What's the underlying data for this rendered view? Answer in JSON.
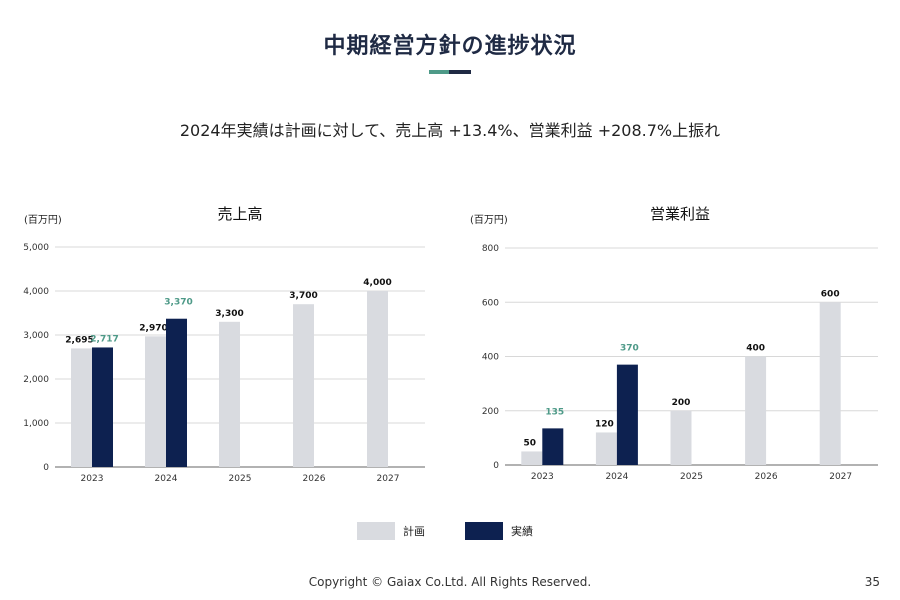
{
  "page": {
    "title": "中期経営方針の進捗状況",
    "subtitle": "2024年実績は計画に対して、売上高 +13.4%、営業利益 +208.7%上振れ",
    "footer": "Copyright © Gaiax Co.Ltd. All Rights Reserved.",
    "page_number": "35",
    "legend": {
      "plan": "計画",
      "actual": "実績"
    }
  },
  "colors": {
    "plan": "#d9dbe0",
    "actual": "#0d2150",
    "actual_label": "#4e9a88",
    "accent_green": "#4e9a88",
    "accent_navy": "#1f2a44"
  },
  "chart_data": [
    {
      "type": "bar",
      "title": "売上高",
      "unit": "(百万円)",
      "categories": [
        "2023",
        "2024",
        "2025",
        "2026",
        "2027"
      ],
      "ylim": [
        0,
        5000
      ],
      "yticks": [
        "0",
        "1,000",
        "2,000",
        "3,000",
        "4,000",
        "5,000"
      ],
      "series": [
        {
          "name": "計画",
          "values": [
            2695,
            2970,
            3300,
            3700,
            4000
          ],
          "labels": [
            "2,695",
            "2,970",
            "3,300",
            "3,700",
            "4,000"
          ]
        },
        {
          "name": "実績",
          "values": [
            2717,
            3370,
            null,
            null,
            null
          ],
          "labels": [
            "2,717",
            "3,370",
            null,
            null,
            null
          ]
        }
      ],
      "grid": true,
      "legend": "bottom-center"
    },
    {
      "type": "bar",
      "title": "営業利益",
      "unit": "(百万円)",
      "categories": [
        "2023",
        "2024",
        "2025",
        "2026",
        "2027"
      ],
      "ylim": [
        0,
        800
      ],
      "yticks": [
        "0",
        "200",
        "400",
        "600",
        "800"
      ],
      "series": [
        {
          "name": "計画",
          "values": [
            50,
            120,
            200,
            400,
            600
          ],
          "labels": [
            "50",
            "120",
            "200",
            "400",
            "600"
          ]
        },
        {
          "name": "実績",
          "values": [
            135,
            370,
            null,
            null,
            null
          ],
          "labels": [
            "135",
            "370",
            null,
            null,
            null
          ]
        }
      ],
      "grid": true,
      "legend": "bottom-center"
    }
  ]
}
